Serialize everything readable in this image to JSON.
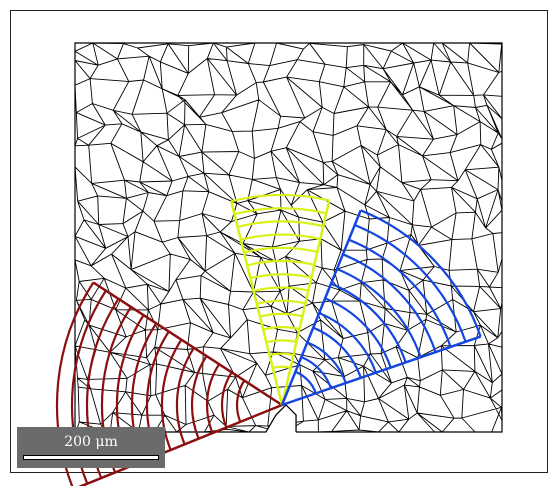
{
  "image": {
    "scale_bar": {
      "label": "200 μm"
    },
    "fans": [
      {
        "name": "red-fan",
        "color": "#8b0f0f",
        "arcs": 13
      },
      {
        "name": "yellow-fan",
        "color": "#d8f216",
        "arcs": 14
      },
      {
        "name": "blue-fan",
        "color": "#1646e0",
        "arcs": 12
      }
    ],
    "background_color": "#ffffff",
    "grain_boundary_color": "#000000"
  }
}
